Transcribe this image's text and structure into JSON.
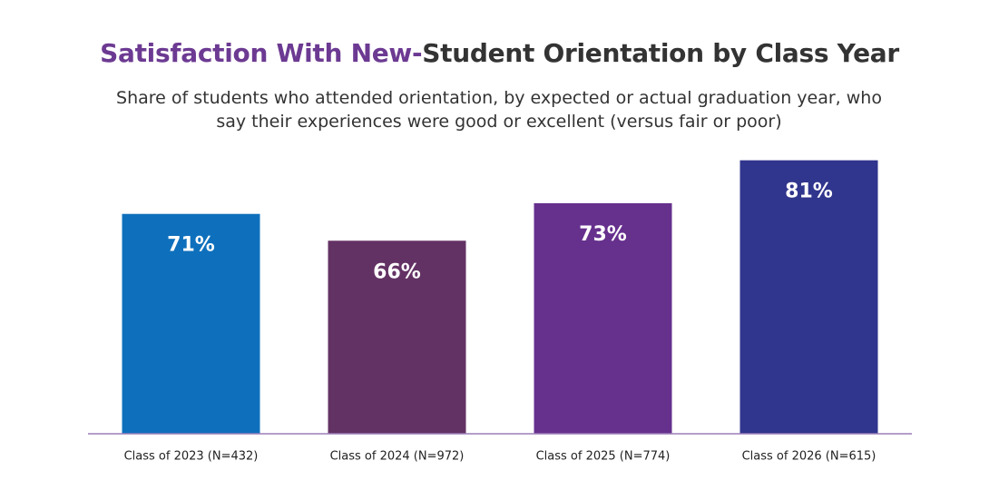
{
  "chart_data": {
    "type": "bar",
    "title": [
      "Satisfaction With New-",
      "Student Orientation by Class Year"
    ],
    "title_colors": [
      "#6c3a92",
      "#333333"
    ],
    "subtitle": "Share of students who attended orientation, by expected or actual graduation year, who say their experiences were good or excellent (versus fair or poor)",
    "categories": [
      "Class of 2023 (N=432)",
      "Class of 2024 (N=972)",
      "Class of 2025 (N=774)",
      "Class of 2026 (N=615)"
    ],
    "values": [
      71,
      66,
      73,
      81
    ],
    "value_labels": [
      "71%",
      "66%",
      "73%",
      "81%"
    ],
    "colors": [
      "#0e70bc",
      "#633264",
      "#66308d",
      "#30358d"
    ],
    "ylim": [
      30,
      85
    ]
  }
}
